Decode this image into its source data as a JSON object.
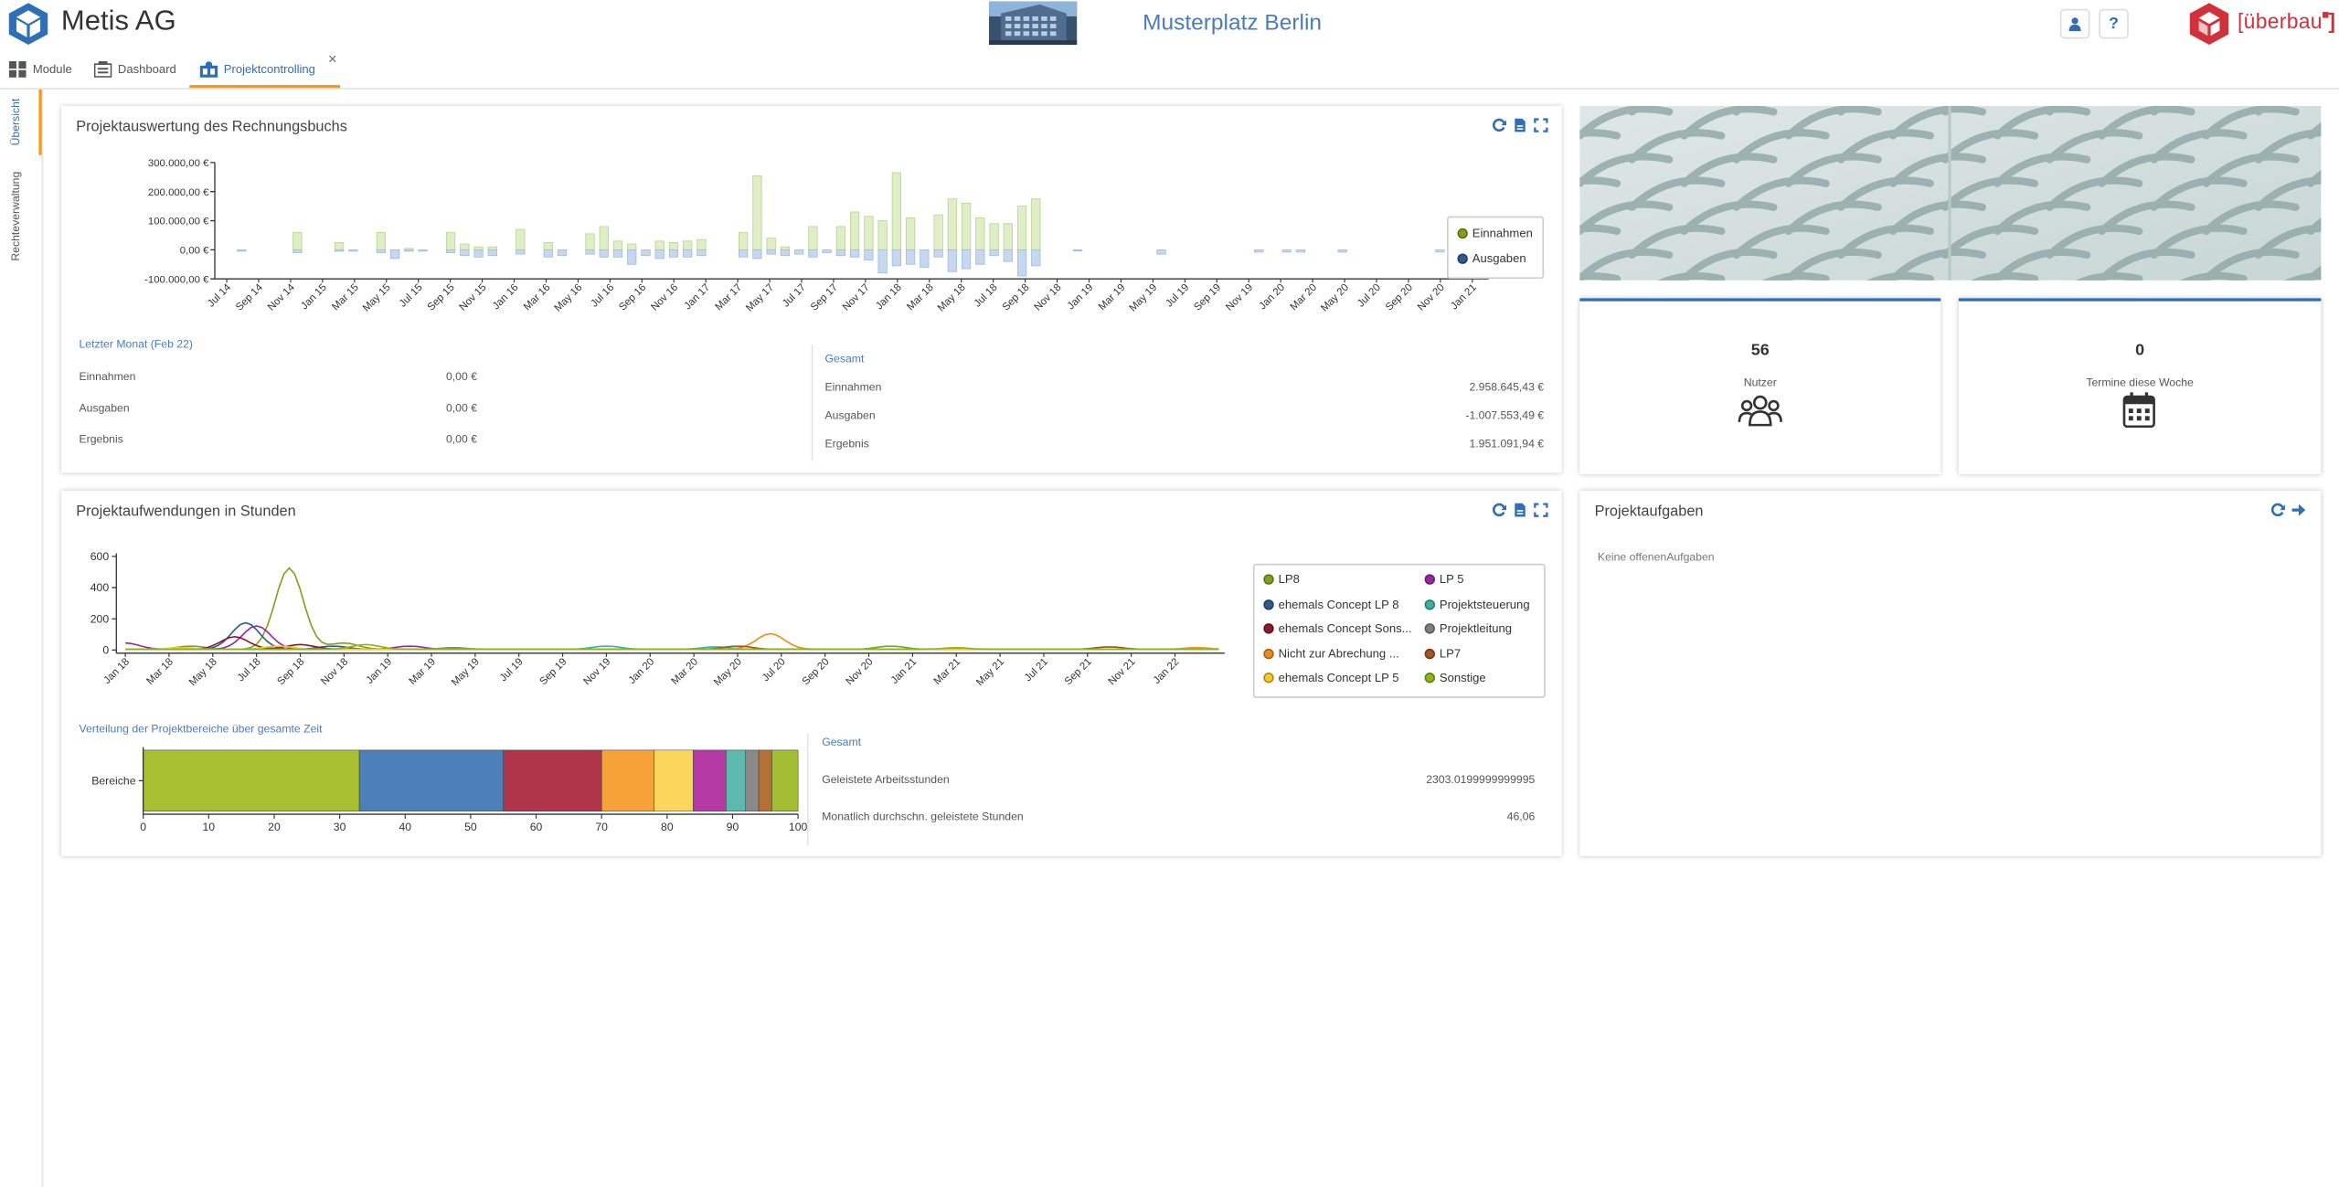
{
  "header": {
    "company": "Metis AG",
    "location": "Musterplatz Berlin",
    "user_icon": "user-icon",
    "help_label": "?",
    "brand_text": "[überbau",
    "brand_color": "#d0313a",
    "accent_color": "#2e6fb5"
  },
  "tabs": [
    {
      "label": "Module",
      "icon": "grid-icon"
    },
    {
      "label": "Dashboard",
      "icon": "dashboard-icon"
    },
    {
      "label": "Projektcontrolling",
      "icon": "project-icon",
      "active": true
    }
  ],
  "tab_close": "×",
  "sidebar": [
    {
      "label": "Übersicht",
      "active": true
    },
    {
      "label": "Rechteverwaltung"
    }
  ],
  "finance": {
    "title": "Projektauswertung des Rechnungsbuchs",
    "last_month_title": "Letzter Monat (Feb 22)",
    "last_month": [
      {
        "label": "Einnahmen",
        "value": "0,00 €"
      },
      {
        "label": "Ausgaben",
        "value": "0,00 €"
      },
      {
        "label": "Ergebnis",
        "value": "0,00 €"
      }
    ],
    "total_title": "Gesamt",
    "total": [
      {
        "label": "Einnahmen",
        "value": "2.958.645,43 €"
      },
      {
        "label": "Ausgaben",
        "value": "-1.007.553,49 €"
      },
      {
        "label": "Ergebnis",
        "value": "1.951.091,94 €"
      }
    ]
  },
  "stats": [
    {
      "value": "56",
      "label": "Nutzer",
      "icon": "users-icon"
    },
    {
      "value": "0",
      "label": "Termine diese Woche",
      "icon": "calendar-icon"
    }
  ],
  "hours": {
    "title": "Projektaufwendungen in Stunden",
    "dist_title": "Verteilung der Projektbereiche über gesamte Zeit",
    "total_title": "Gesamt",
    "total": [
      {
        "label": "Geleistete Arbeitsstunden",
        "value": "2303.0199999999995"
      },
      {
        "label": "Monatlich durchschn. geleistete Stunden",
        "value": "46,06"
      }
    ]
  },
  "tasks": {
    "title": "Projektaufgaben",
    "empty": "Keine offenenAufgaben"
  },
  "chart_data": [
    {
      "type": "bar",
      "title": "",
      "x_tick_labels": [
        "Jul 14",
        "Sep 14",
        "Nov 14",
        "Jan 15",
        "Mar 15",
        "May 15",
        "Jul 15",
        "Sep 15",
        "Nov 15",
        "Jan 16",
        "Mar 16",
        "May 16",
        "Jul 16",
        "Sep 16",
        "Nov 16",
        "Jan 17",
        "Mar 17",
        "May 17",
        "Jul 17",
        "Sep 17",
        "Nov 17",
        "Jan 18",
        "Mar 18",
        "May 18",
        "Jul 18",
        "Sep 18",
        "Nov 18",
        "Jan 19",
        "Mar 19",
        "May 19",
        "Jul 19",
        "Sep 19",
        "Nov 19",
        "Jan 20",
        "Mar 20",
        "May 20",
        "Jul 20",
        "Sep 20",
        "Nov 20",
        "Jan 21"
      ],
      "y_tick_labels": [
        "300.000,00 €",
        "200.000,00 €",
        "100.000,00 €",
        "0,00 €",
        "-100.000,00 €"
      ],
      "ylim": [
        -100000,
        300000
      ],
      "y_ticks": [
        300000,
        200000,
        100000,
        0,
        -100000
      ],
      "legend_position": "right",
      "series": [
        {
          "name": "Einnahmen",
          "color": "#dfeec7",
          "stroke": "#b9d48f",
          "legend_color": "#7ea21d",
          "values": [
            0,
            0,
            0,
            0,
            0,
            60000,
            0,
            0,
            25000,
            0,
            0,
            60000,
            -25000,
            5000,
            0,
            0,
            60000,
            20000,
            10000,
            10000,
            0,
            70000,
            0,
            25000,
            0,
            0,
            55000,
            80000,
            30000,
            20000,
            0,
            30000,
            25000,
            30000,
            35000,
            0,
            0,
            60000,
            255000,
            40000,
            10000,
            0,
            80000,
            0,
            80000,
            130000,
            115000,
            100000,
            265000,
            110000,
            0,
            120000,
            175000,
            160000,
            110000,
            90000,
            90000,
            150000,
            175000,
            0,
            0,
            0,
            0,
            0,
            0,
            0,
            0,
            0,
            0,
            0,
            0,
            0,
            0,
            0,
            0,
            0,
            0,
            0,
            0,
            0,
            0,
            0,
            0,
            0,
            0,
            0,
            0,
            0,
            0,
            0,
            0
          ]
        },
        {
          "name": "Ausgaben",
          "color": "#c6d8f0",
          "stroke": "#9ebbe3",
          "legend_color": "#2d5c91",
          "values": [
            0,
            -5000,
            0,
            0,
            0,
            -10000,
            0,
            0,
            -5000,
            -5000,
            0,
            -10000,
            -30000,
            -5000,
            -5000,
            0,
            -10000,
            -20000,
            -25000,
            -20000,
            0,
            -15000,
            0,
            -25000,
            -20000,
            0,
            -15000,
            -25000,
            -25000,
            -50000,
            -20000,
            -30000,
            -25000,
            -25000,
            -20000,
            0,
            0,
            -25000,
            -30000,
            -15000,
            -20000,
            -15000,
            -25000,
            -10000,
            -20000,
            -25000,
            -35000,
            -80000,
            -55000,
            -50000,
            -60000,
            -25000,
            -75000,
            -65000,
            -50000,
            -20000,
            -40000,
            -90000,
            -55000,
            0,
            0,
            -3000,
            0,
            0,
            0,
            0,
            0,
            -15000,
            0,
            0,
            0,
            0,
            0,
            0,
            -8000,
            0,
            -8000,
            -8000,
            0,
            0,
            -8000,
            0,
            0,
            0,
            0,
            0,
            0,
            -8000,
            0,
            0,
            -5000
          ]
        }
      ]
    },
    {
      "type": "line",
      "title": "",
      "x_tick_labels": [
        "Jan 18",
        "Mar 18",
        "May 18",
        "Jul 18",
        "Sep 18",
        "Nov 18",
        "Jan 19",
        "Mar 19",
        "May 19",
        "Jul 19",
        "Sep 19",
        "Nov 19",
        "Jan 20",
        "Mar 20",
        "May 20",
        "Jul 20",
        "Sep 20",
        "Nov 20",
        "Jan 21",
        "Mar 21",
        "May 21",
        "Jul 21",
        "Sep 21",
        "Nov 21",
        "Jan 22"
      ],
      "y_ticks": [
        0,
        200,
        400,
        600
      ],
      "ylim": [
        -20,
        620
      ],
      "legend_position": "right",
      "series": [
        {
          "name": "LP8",
          "color": "#7ea21d",
          "peaks": [
            [
              7.5,
              520
            ],
            [
              3,
              20
            ],
            [
              10,
              40
            ],
            [
              35,
              20
            ]
          ]
        },
        {
          "name": "LP 5",
          "color": "#9b27a0",
          "peaks": [
            [
              0,
              40
            ],
            [
              6,
              150
            ],
            [
              13,
              20
            ]
          ]
        },
        {
          "name": "ehemals Concept LP 8",
          "color": "#2d5c91",
          "peaks": [
            [
              5.5,
              170
            ],
            [
              9.5,
              20
            ]
          ]
        },
        {
          "name": "Projektsteuerung",
          "color": "#3cb1a2",
          "peaks": [
            [
              22,
              20
            ],
            [
              27,
              15
            ]
          ]
        },
        {
          "name": "ehemals Concept Sons...",
          "color": "#8e1b2a",
          "peaks": [
            [
              5,
              80
            ],
            [
              8,
              30
            ]
          ]
        },
        {
          "name": "Projektleitung",
          "color": "#808080",
          "peaks": [
            [
              15,
              10
            ]
          ]
        },
        {
          "name": "Nicht zur Abrechung ...",
          "color": "#f08c1e",
          "peaks": [
            [
              29.5,
              100
            ],
            [
              49,
              10
            ]
          ]
        },
        {
          "name": "LP7",
          "color": "#a4561c",
          "peaks": [
            [
              28,
              20
            ],
            [
              45,
              15
            ]
          ]
        },
        {
          "name": "ehemals Concept LP 5",
          "color": "#f5c829",
          "peaks": [
            [
              2.5,
              10
            ],
            [
              7,
              20
            ]
          ]
        },
        {
          "name": "Sonstige",
          "color": "#8ab618",
          "peaks": [
            [
              11,
              30
            ],
            [
              38,
              10
            ]
          ]
        }
      ]
    },
    {
      "type": "bar",
      "orientation": "horizontal",
      "stacked": true,
      "title": "",
      "categories": [
        "Bereiche"
      ],
      "xlim": [
        0,
        100
      ],
      "x_ticks": [
        0,
        10,
        20,
        30,
        40,
        50,
        60,
        70,
        80,
        90,
        100
      ],
      "series": [
        {
          "name": "LP8",
          "color": "#a8bf32",
          "value": 33
        },
        {
          "name": "ehemals Concept LP 8",
          "color": "#4d7fb8",
          "value": 22
        },
        {
          "name": "ehemals Concept Sons...",
          "color": "#b0344a",
          "value": 15
        },
        {
          "name": "Nicht zur Abrechung ...",
          "color": "#f7a238",
          "value": 8
        },
        {
          "name": "ehemals Concept LP 5",
          "color": "#fbd65c",
          "value": 6
        },
        {
          "name": "LP 5",
          "color": "#b63aa6",
          "value": 5
        },
        {
          "name": "Projektsteuerung",
          "color": "#5db8ad",
          "value": 3
        },
        {
          "name": "Projektleitung",
          "color": "#8a8a8a",
          "value": 2
        },
        {
          "name": "LP7",
          "color": "#b57036",
          "value": 2
        },
        {
          "name": "Sonstige",
          "color": "#a3be32",
          "value": 4
        }
      ]
    }
  ]
}
